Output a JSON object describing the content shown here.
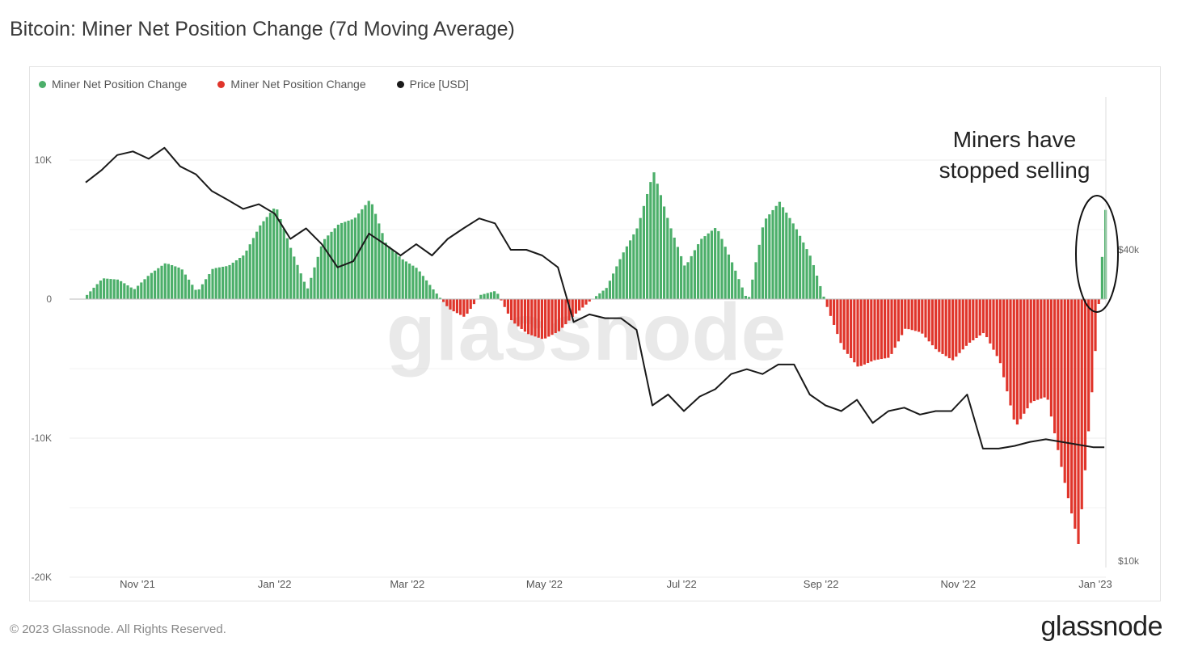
{
  "header": {
    "title": "Bitcoin: Miner Net Position Change (7d Moving Average)"
  },
  "footer": {
    "copyright": "© 2023 Glassnode. All Rights Reserved.",
    "logo": "glassnode"
  },
  "watermark": "glassnode",
  "annotation": {
    "line1": "Miners have",
    "line2": "stopped selling"
  },
  "colors": {
    "positive": "#4caf6a",
    "negative": "#e0352b",
    "price": "#1a1a1a",
    "grid": "#ececec"
  },
  "chart_data": {
    "type": "bar",
    "xlabel": "",
    "ylabel": "",
    "ylim": [
      -20000,
      12000
    ],
    "y2lim": [
      10000,
      70000
    ],
    "y2scale": "log",
    "y_ticks": [
      {
        "value": 10000,
        "label": "10K"
      },
      {
        "value": 0,
        "label": "0"
      },
      {
        "value": -10000,
        "label": "-10K"
      },
      {
        "value": -20000,
        "label": "-20K"
      }
    ],
    "y2_ticks": [
      {
        "value": 40000,
        "label": "$40k"
      },
      {
        "value": 10000,
        "label": "$10k"
      }
    ],
    "x_ticks": [
      {
        "date": "2021-11-01",
        "label": "Nov '21"
      },
      {
        "date": "2022-01-01",
        "label": "Jan '22"
      },
      {
        "date": "2022-03-01",
        "label": "Mar '22"
      },
      {
        "date": "2022-05-01",
        "label": "May '22"
      },
      {
        "date": "2022-07-01",
        "label": "Jul '22"
      },
      {
        "date": "2022-09-01",
        "label": "Sep '22"
      },
      {
        "date": "2022-11-01",
        "label": "Nov '22"
      },
      {
        "date": "2023-01-01",
        "label": "Jan '23"
      }
    ],
    "legend": [
      "Miner Net Position Change",
      "Miner Net Position Change",
      "Price [USD]"
    ],
    "legend_placement": "top-left",
    "grid": true,
    "bar_dates": [
      "2021-10-09",
      "2021-10-16",
      "2021-10-23",
      "2021-10-30",
      "2021-11-06",
      "2021-11-13",
      "2021-11-20",
      "2021-11-27",
      "2021-12-04",
      "2021-12-11",
      "2021-12-18",
      "2021-12-25",
      "2022-01-01",
      "2022-01-08",
      "2022-01-15",
      "2022-01-22",
      "2022-01-29",
      "2022-02-05",
      "2022-02-12",
      "2022-02-19",
      "2022-02-26",
      "2022-03-05",
      "2022-03-12",
      "2022-03-19",
      "2022-03-26",
      "2022-04-02",
      "2022-04-09",
      "2022-04-16",
      "2022-04-23",
      "2022-04-30",
      "2022-05-07",
      "2022-05-14",
      "2022-05-21",
      "2022-05-28",
      "2022-06-04",
      "2022-06-11",
      "2022-06-18",
      "2022-06-25",
      "2022-07-02",
      "2022-07-09",
      "2022-07-16",
      "2022-07-23",
      "2022-07-30",
      "2022-08-06",
      "2022-08-13",
      "2022-08-20",
      "2022-08-27",
      "2022-09-03",
      "2022-09-10",
      "2022-09-17",
      "2022-09-24",
      "2022-10-01",
      "2022-10-08",
      "2022-10-15",
      "2022-10-22",
      "2022-10-29",
      "2022-11-05",
      "2022-11-12",
      "2022-11-19",
      "2022-11-26",
      "2022-12-03",
      "2022-12-10",
      "2022-12-17",
      "2022-12-24",
      "2022-12-31",
      "2023-01-05"
    ],
    "series": [
      {
        "name": "Miner Net Position Change",
        "values": [
          300,
          1500,
          1400,
          700,
          1800,
          2600,
          2200,
          500,
          2200,
          2400,
          3200,
          5300,
          6700,
          3500,
          700,
          4200,
          5400,
          5800,
          7200,
          4000,
          2900,
          2200,
          700,
          -700,
          -1300,
          300,
          600,
          -1600,
          -2500,
          -2900,
          -2300,
          -1100,
          -100,
          800,
          3200,
          5200,
          9200,
          5400,
          2300,
          4300,
          5200,
          2600,
          -200,
          5600,
          7000,
          5200,
          3000,
          -500,
          -3500,
          -4900,
          -4400,
          -4200,
          -2100,
          -2400,
          -3700,
          -4400,
          -3200,
          -2400,
          -4500,
          -9200,
          -7400,
          -7000,
          -12600,
          -17700,
          -4700,
          6500
        ]
      },
      {
        "name": "Price [USD]",
        "values": [
          54000,
          57000,
          61000,
          62000,
          60000,
          63000,
          58000,
          56000,
          52000,
          50000,
          48000,
          49000,
          47000,
          42000,
          44000,
          41000,
          37000,
          38000,
          43000,
          41000,
          39000,
          41000,
          39000,
          42000,
          44000,
          46000,
          45000,
          40000,
          40000,
          39000,
          37000,
          29000,
          30000,
          29500,
          29500,
          28000,
          20000,
          21000,
          19500,
          20800,
          21500,
          23000,
          23500,
          23000,
          24000,
          24000,
          21000,
          20000,
          19500,
          20500,
          18500,
          19500,
          19800,
          19200,
          19500,
          19500,
          21000,
          16500,
          16500,
          16700,
          17000,
          17200,
          17000,
          16800,
          16600,
          16600
        ]
      }
    ]
  }
}
